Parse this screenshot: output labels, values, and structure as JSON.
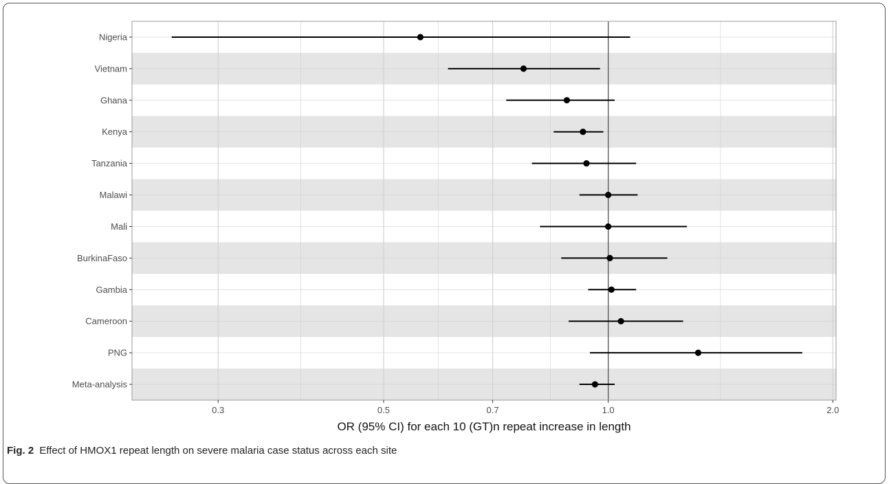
{
  "caption": {
    "label": "Fig. 2",
    "text": "Effect of HMOX1 repeat length on severe malaria case status across each site"
  },
  "chart_data": {
    "type": "forest",
    "xlabel": "OR (95% CI) for each 10 (GT)n repeat increase in length",
    "x_scale": "log",
    "xlim": [
      0.23,
      2.02
    ],
    "xticks": [
      0.3,
      0.5,
      0.7,
      1.0,
      2.0
    ],
    "xtick_labels": [
      "0.3",
      "0.5",
      "0.7",
      "1.0",
      "2.0"
    ],
    "reference_line": 1.0,
    "grid": true,
    "categories": [
      "Nigeria",
      "Vietnam",
      "Ghana",
      "Kenya",
      "Tanzania",
      "Malawi",
      "Mali",
      "BurkinaFaso",
      "Gambia",
      "Cameroon",
      "PNG",
      "Meta-analysis"
    ],
    "or": [
      0.56,
      0.77,
      0.88,
      0.925,
      0.935,
      1.0,
      1.0,
      1.005,
      1.01,
      1.04,
      1.32,
      0.96
    ],
    "ci_low": [
      0.26,
      0.61,
      0.73,
      0.845,
      0.79,
      0.915,
      0.81,
      0.865,
      0.94,
      0.885,
      0.945,
      0.915
    ],
    "ci_high": [
      1.07,
      0.975,
      1.02,
      0.985,
      1.09,
      1.095,
      1.275,
      1.2,
      1.09,
      1.26,
      1.82,
      1.02
    ],
    "colors": {
      "band": "#e5e5e5",
      "grid": "#cfcfcf",
      "mark": "#000000",
      "refline": "#555555"
    }
  }
}
